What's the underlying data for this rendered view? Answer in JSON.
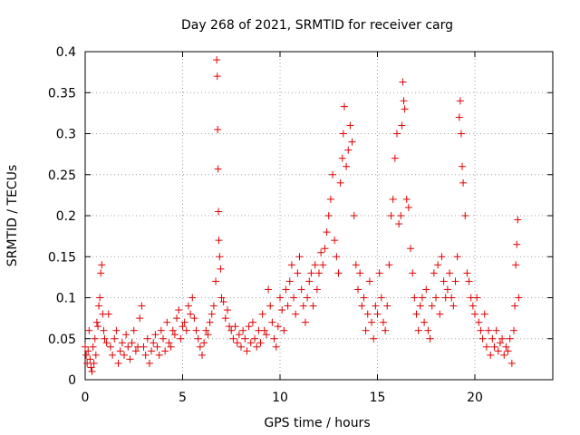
{
  "chart_data": {
    "type": "scatter",
    "title": "Day 268 of 2021, SRMTID for receiver carg",
    "xlabel": "GPS time / hours",
    "ylabel": "SRMTID / TECUs",
    "xlim": [
      0,
      24
    ],
    "ylim": [
      0,
      0.4
    ],
    "x_ticks": [
      0,
      5,
      10,
      15,
      20
    ],
    "y_ticks": [
      0,
      0.05,
      0.1,
      0.15,
      0.2,
      0.25,
      0.3,
      0.35,
      0.4
    ],
    "x_tick_labels": [
      "0",
      "5",
      "10",
      "15",
      "20"
    ],
    "y_tick_labels": [
      "0",
      "0.05",
      "0.1",
      "0.15",
      "0.2",
      "0.25",
      "0.3",
      "0.35",
      "0.4"
    ],
    "grid": true,
    "marker": "+",
    "color": "#e00000",
    "series": [
      {
        "name": "SRMTID",
        "points": [
          [
            0.0,
            0.04
          ],
          [
            0.05,
            0.03
          ],
          [
            0.1,
            0.02
          ],
          [
            0.15,
            0.035
          ],
          [
            0.2,
            0.06
          ],
          [
            0.25,
            0.025
          ],
          [
            0.3,
            0.015
          ],
          [
            0.35,
            0.01
          ],
          [
            0.4,
            0.04
          ],
          [
            0.45,
            0.02
          ],
          [
            0.5,
            0.05
          ],
          [
            0.55,
            0.03
          ],
          [
            0.6,
            0.07
          ],
          [
            0.65,
            0.065
          ],
          [
            0.7,
            0.09
          ],
          [
            0.75,
            0.1
          ],
          [
            0.8,
            0.13
          ],
          [
            0.85,
            0.14
          ],
          [
            0.9,
            0.08
          ],
          [
            0.95,
            0.06
          ],
          [
            1.0,
            0.05
          ],
          [
            1.1,
            0.045
          ],
          [
            1.2,
            0.08
          ],
          [
            1.3,
            0.04
          ],
          [
            1.4,
            0.03
          ],
          [
            1.5,
            0.05
          ],
          [
            1.6,
            0.06
          ],
          [
            1.7,
            0.02
          ],
          [
            1.8,
            0.035
          ],
          [
            1.9,
            0.045
          ],
          [
            2.0,
            0.03
          ],
          [
            2.1,
            0.055
          ],
          [
            2.2,
            0.04
          ],
          [
            2.3,
            0.025
          ],
          [
            2.4,
            0.045
          ],
          [
            2.5,
            0.06
          ],
          [
            2.6,
            0.035
          ],
          [
            2.7,
            0.04
          ],
          [
            2.8,
            0.075
          ],
          [
            2.9,
            0.09
          ],
          [
            3.0,
            0.04
          ],
          [
            3.1,
            0.03
          ],
          [
            3.2,
            0.05
          ],
          [
            3.3,
            0.02
          ],
          [
            3.4,
            0.035
          ],
          [
            3.5,
            0.045
          ],
          [
            3.6,
            0.055
          ],
          [
            3.7,
            0.04
          ],
          [
            3.8,
            0.03
          ],
          [
            3.9,
            0.06
          ],
          [
            4.0,
            0.05
          ],
          [
            4.1,
            0.035
          ],
          [
            4.2,
            0.07
          ],
          [
            4.3,
            0.045
          ],
          [
            4.4,
            0.04
          ],
          [
            4.5,
            0.06
          ],
          [
            4.6,
            0.055
          ],
          [
            4.7,
            0.075
          ],
          [
            4.8,
            0.085
          ],
          [
            4.9,
            0.05
          ],
          [
            5.0,
            0.065
          ],
          [
            5.1,
            0.07
          ],
          [
            5.2,
            0.06
          ],
          [
            5.3,
            0.09
          ],
          [
            5.4,
            0.08
          ],
          [
            5.5,
            0.1
          ],
          [
            5.6,
            0.075
          ],
          [
            5.7,
            0.06
          ],
          [
            5.8,
            0.05
          ],
          [
            5.9,
            0.04
          ],
          [
            6.0,
            0.03
          ],
          [
            6.1,
            0.045
          ],
          [
            6.2,
            0.06
          ],
          [
            6.3,
            0.055
          ],
          [
            6.4,
            0.07
          ],
          [
            6.5,
            0.08
          ],
          [
            6.6,
            0.09
          ],
          [
            6.7,
            0.12
          ],
          [
            6.75,
            0.39
          ],
          [
            6.78,
            0.37
          ],
          [
            6.8,
            0.305
          ],
          [
            6.82,
            0.257
          ],
          [
            6.84,
            0.205
          ],
          [
            6.86,
            0.17
          ],
          [
            6.9,
            0.15
          ],
          [
            6.95,
            0.135
          ],
          [
            7.0,
            0.1
          ],
          [
            7.1,
            0.095
          ],
          [
            7.2,
            0.075
          ],
          [
            7.3,
            0.085
          ],
          [
            7.4,
            0.065
          ],
          [
            7.5,
            0.06
          ],
          [
            7.6,
            0.05
          ],
          [
            7.7,
            0.065
          ],
          [
            7.8,
            0.045
          ],
          [
            7.9,
            0.055
          ],
          [
            8.0,
            0.04
          ],
          [
            8.1,
            0.06
          ],
          [
            8.2,
            0.05
          ],
          [
            8.3,
            0.035
          ],
          [
            8.4,
            0.065
          ],
          [
            8.5,
            0.045
          ],
          [
            8.6,
            0.07
          ],
          [
            8.7,
            0.05
          ],
          [
            8.8,
            0.04
          ],
          [
            8.9,
            0.06
          ],
          [
            9.0,
            0.045
          ],
          [
            9.1,
            0.08
          ],
          [
            9.2,
            0.06
          ],
          [
            9.3,
            0.055
          ],
          [
            9.4,
            0.11
          ],
          [
            9.5,
            0.09
          ],
          [
            9.6,
            0.07
          ],
          [
            9.7,
            0.05
          ],
          [
            9.8,
            0.04
          ],
          [
            9.9,
            0.065
          ],
          [
            10.0,
            0.1
          ],
          [
            10.1,
            0.085
          ],
          [
            10.2,
            0.06
          ],
          [
            10.3,
            0.11
          ],
          [
            10.4,
            0.09
          ],
          [
            10.5,
            0.12
          ],
          [
            10.6,
            0.14
          ],
          [
            10.7,
            0.1
          ],
          [
            10.8,
            0.08
          ],
          [
            10.9,
            0.13
          ],
          [
            11.0,
            0.15
          ],
          [
            11.1,
            0.11
          ],
          [
            11.2,
            0.09
          ],
          [
            11.3,
            0.07
          ],
          [
            11.4,
            0.1
          ],
          [
            11.5,
            0.12
          ],
          [
            11.6,
            0.13
          ],
          [
            11.7,
            0.09
          ],
          [
            11.8,
            0.14
          ],
          [
            11.9,
            0.11
          ],
          [
            12.0,
            0.13
          ],
          [
            12.1,
            0.155
          ],
          [
            12.2,
            0.14
          ],
          [
            12.3,
            0.16
          ],
          [
            12.4,
            0.18
          ],
          [
            12.5,
            0.2
          ],
          [
            12.6,
            0.22
          ],
          [
            12.7,
            0.25
          ],
          [
            12.8,
            0.17
          ],
          [
            12.9,
            0.15
          ],
          [
            13.0,
            0.13
          ],
          [
            13.1,
            0.24
          ],
          [
            13.2,
            0.27
          ],
          [
            13.25,
            0.3
          ],
          [
            13.3,
            0.333
          ],
          [
            13.4,
            0.26
          ],
          [
            13.5,
            0.28
          ],
          [
            13.6,
            0.31
          ],
          [
            13.7,
            0.29
          ],
          [
            13.8,
            0.2
          ],
          [
            13.9,
            0.14
          ],
          [
            14.0,
            0.11
          ],
          [
            14.1,
            0.13
          ],
          [
            14.2,
            0.09
          ],
          [
            14.3,
            0.1
          ],
          [
            14.4,
            0.06
          ],
          [
            14.5,
            0.08
          ],
          [
            14.6,
            0.12
          ],
          [
            14.7,
            0.07
          ],
          [
            14.8,
            0.05
          ],
          [
            14.9,
            0.09
          ],
          [
            15.0,
            0.08
          ],
          [
            15.1,
            0.13
          ],
          [
            15.2,
            0.1
          ],
          [
            15.3,
            0.07
          ],
          [
            15.4,
            0.06
          ],
          [
            15.5,
            0.09
          ],
          [
            15.6,
            0.14
          ],
          [
            15.7,
            0.2
          ],
          [
            15.8,
            0.22
          ],
          [
            15.9,
            0.27
          ],
          [
            16.0,
            0.3
          ],
          [
            16.1,
            0.19
          ],
          [
            16.2,
            0.2
          ],
          [
            16.25,
            0.31
          ],
          [
            16.3,
            0.363
          ],
          [
            16.35,
            0.34
          ],
          [
            16.4,
            0.33
          ],
          [
            16.5,
            0.22
          ],
          [
            16.6,
            0.21
          ],
          [
            16.7,
            0.16
          ],
          [
            16.8,
            0.13
          ],
          [
            16.9,
            0.1
          ],
          [
            17.0,
            0.08
          ],
          [
            17.1,
            0.06
          ],
          [
            17.2,
            0.09
          ],
          [
            17.3,
            0.1
          ],
          [
            17.4,
            0.07
          ],
          [
            17.5,
            0.11
          ],
          [
            17.6,
            0.06
          ],
          [
            17.7,
            0.05
          ],
          [
            17.8,
            0.09
          ],
          [
            17.9,
            0.13
          ],
          [
            18.0,
            0.1
          ],
          [
            18.1,
            0.14
          ],
          [
            18.2,
            0.08
          ],
          [
            18.3,
            0.15
          ],
          [
            18.4,
            0.12
          ],
          [
            18.5,
            0.1
          ],
          [
            18.6,
            0.11
          ],
          [
            18.7,
            0.13
          ],
          [
            18.8,
            0.1
          ],
          [
            18.9,
            0.09
          ],
          [
            19.0,
            0.12
          ],
          [
            19.1,
            0.15
          ],
          [
            19.2,
            0.32
          ],
          [
            19.25,
            0.34
          ],
          [
            19.3,
            0.3
          ],
          [
            19.35,
            0.26
          ],
          [
            19.4,
            0.24
          ],
          [
            19.5,
            0.2
          ],
          [
            19.6,
            0.13
          ],
          [
            19.7,
            0.12
          ],
          [
            19.8,
            0.1
          ],
          [
            19.9,
            0.09
          ],
          [
            20.0,
            0.08
          ],
          [
            20.1,
            0.1
          ],
          [
            20.2,
            0.07
          ],
          [
            20.3,
            0.06
          ],
          [
            20.4,
            0.05
          ],
          [
            20.5,
            0.08
          ],
          [
            20.6,
            0.04
          ],
          [
            20.7,
            0.06
          ],
          [
            20.8,
            0.03
          ],
          [
            20.9,
            0.05
          ],
          [
            21.0,
            0.04
          ],
          [
            21.1,
            0.06
          ],
          [
            21.2,
            0.035
          ],
          [
            21.3,
            0.045
          ],
          [
            21.4,
            0.05
          ],
          [
            21.5,
            0.03
          ],
          [
            21.6,
            0.04
          ],
          [
            21.7,
            0.035
          ],
          [
            21.8,
            0.05
          ],
          [
            21.9,
            0.02
          ],
          [
            22.0,
            0.06
          ],
          [
            22.05,
            0.09
          ],
          [
            22.1,
            0.14
          ],
          [
            22.15,
            0.165
          ],
          [
            22.2,
            0.195
          ],
          [
            22.25,
            0.1
          ]
        ]
      }
    ]
  }
}
